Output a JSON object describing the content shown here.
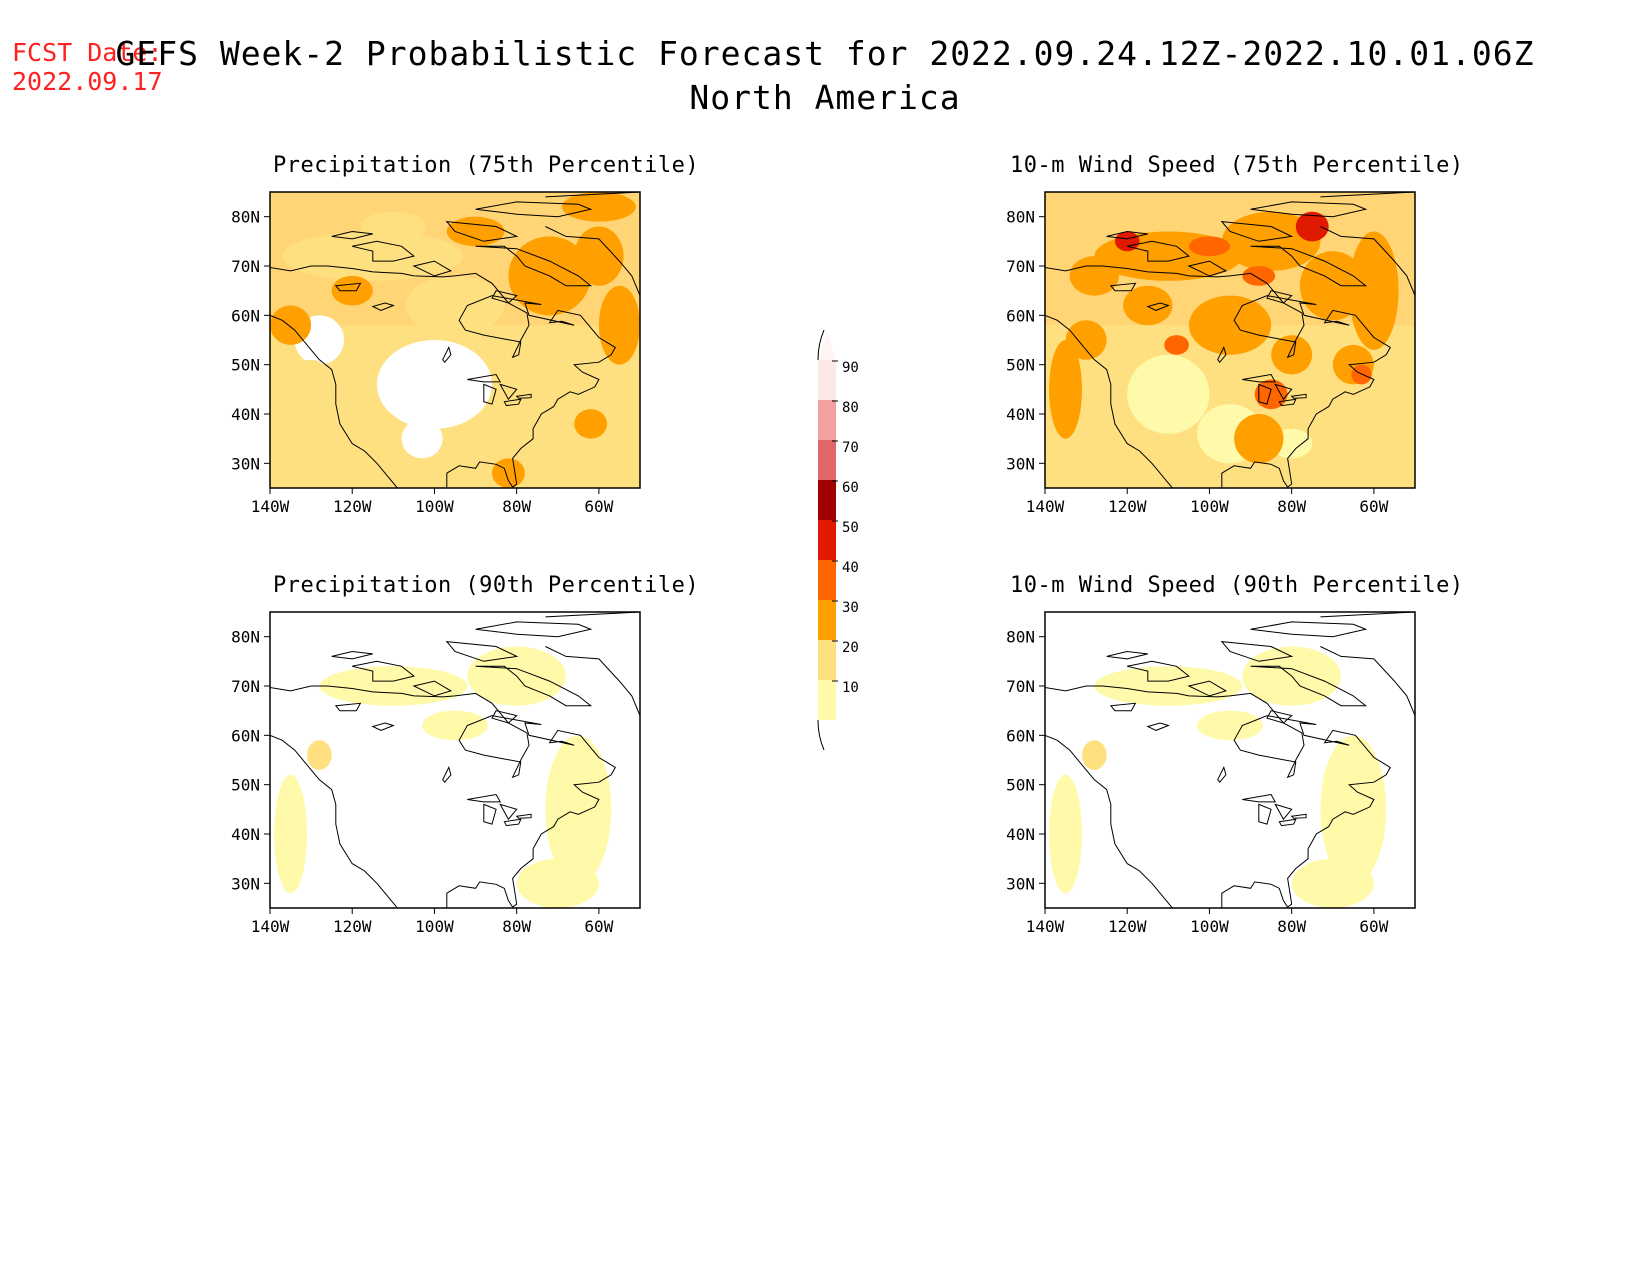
{
  "header": {
    "fcst_label": "FCST Date:",
    "fcst_date": "2022.09.17",
    "title_line1": "GEFS Week-2 Probabilistic Forecast for 2022.09.24.12Z-2022.10.01.06Z",
    "title_line2": "North America"
  },
  "axes": {
    "lat_labels": [
      "80N",
      "70N",
      "60N",
      "50N",
      "40N",
      "30N"
    ],
    "lat_values": [
      80,
      70,
      60,
      50,
      40,
      30
    ],
    "lon_labels": [
      "140W",
      "120W",
      "100W",
      "80W",
      "60W"
    ],
    "lon_values": [
      -140,
      -120,
      -100,
      -80,
      -60
    ],
    "lon_range": [
      -140,
      -50
    ],
    "lat_range": [
      25,
      85
    ]
  },
  "panels": [
    {
      "id": "precip-75",
      "title": "Precipitation (75th Percentile)",
      "level": "mid"
    },
    {
      "id": "wind-75",
      "title": "10-m Wind Speed (75th Percentile)",
      "level": "high"
    },
    {
      "id": "precip-90",
      "title": "Precipitation (90th Percentile)",
      "level": "low"
    },
    {
      "id": "wind-90",
      "title": "10-m Wind Speed (90th Percentile)",
      "level": "low"
    }
  ],
  "colorbar": {
    "labels": [
      "90",
      "80",
      "70",
      "60",
      "50",
      "40",
      "30",
      "20",
      "10"
    ],
    "values": [
      90,
      80,
      70,
      60,
      50,
      40,
      30,
      20,
      10
    ],
    "colors": [
      "#fde8e8",
      "#f4a0a0",
      "#e06868",
      "#a00000",
      "#e01a00",
      "#ff6600",
      "#ffa000",
      "#ffe080",
      "#fffaaa"
    ]
  },
  "colors": {
    "fcst_text": "#ff2020",
    "c10": "#fffaaa",
    "c20": "#ffe080",
    "c30": "#ffa000",
    "c40": "#ff6600",
    "c50": "#e01a00"
  }
}
